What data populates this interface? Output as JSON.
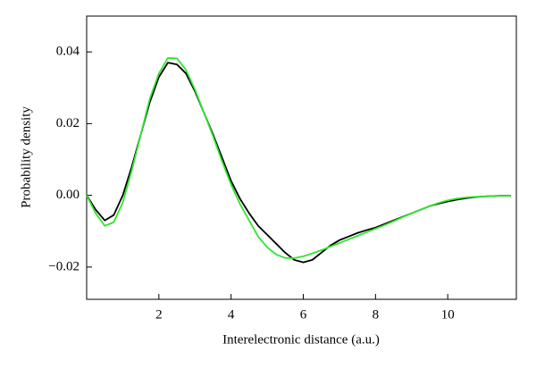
{
  "chart_data": {
    "type": "line",
    "xlabel": "Interelectronic distance (a.u.)",
    "ylabel": "Probability density",
    "x": [
      0,
      0.25,
      0.5,
      0.75,
      1,
      1.25,
      1.5,
      1.75,
      2,
      2.25,
      2.5,
      2.75,
      3,
      3.25,
      3.5,
      3.75,
      4,
      4.25,
      4.5,
      4.75,
      5,
      5.25,
      5.5,
      5.75,
      6,
      6.25,
      6.5,
      6.75,
      7,
      7.25,
      7.5,
      7.75,
      8,
      8.25,
      8.5,
      8.75,
      9,
      9.25,
      9.5,
      9.75,
      10,
      10.25,
      10.5,
      10.75,
      11,
      11.25,
      11.5,
      11.75
    ],
    "series": [
      {
        "color": "#000000",
        "values": [
          0,
          -0.004,
          -0.007,
          -0.0055,
          0,
          0.008,
          0.017,
          0.026,
          0.033,
          0.037,
          0.0365,
          0.034,
          0.029,
          0.023,
          0.017,
          0.0105,
          0.004,
          -0.001,
          -0.005,
          -0.0085,
          -0.011,
          -0.0135,
          -0.016,
          -0.018,
          -0.0187,
          -0.018,
          -0.016,
          -0.014,
          -0.0125,
          -0.0115,
          -0.0105,
          -0.0097,
          -0.009,
          -0.008,
          -0.007,
          -0.006,
          -0.005,
          -0.004,
          -0.003,
          -0.0023,
          -0.0017,
          -0.0012,
          -0.0008,
          -0.0005,
          -0.0003,
          -0.0002,
          -0.0001,
          -0.0001
        ]
      },
      {
        "color": "#2ee62e",
        "values": [
          0,
          -0.005,
          -0.0085,
          -0.0075,
          -0.002,
          0.007,
          0.017,
          0.027,
          0.034,
          0.0383,
          0.0382,
          0.035,
          0.0295,
          0.023,
          0.0165,
          0.0095,
          0.003,
          -0.0025,
          -0.007,
          -0.0115,
          -0.0145,
          -0.0165,
          -0.0175,
          -0.0175,
          -0.017,
          -0.0162,
          -0.0153,
          -0.0143,
          -0.0133,
          -0.0123,
          -0.0113,
          -0.0103,
          -0.0093,
          -0.0083,
          -0.0072,
          -0.0061,
          -0.005,
          -0.004,
          -0.003,
          -0.0021,
          -0.0014,
          -0.0009,
          -0.0006,
          -0.0004,
          -0.0003,
          -0.0002,
          -0.0001,
          -0.0001
        ]
      }
    ],
    "xlim": [
      0,
      11.9
    ],
    "xticks": [
      2,
      4,
      6,
      8,
      10
    ],
    "ylim": [
      -0.029,
      0.05
    ],
    "yticks": [
      0.04,
      0.02,
      {
        "value": 0,
        "label": "0.00"
      },
      {
        "value": -0.02,
        "label": "−0.02"
      }
    ],
    "grid": false
  }
}
